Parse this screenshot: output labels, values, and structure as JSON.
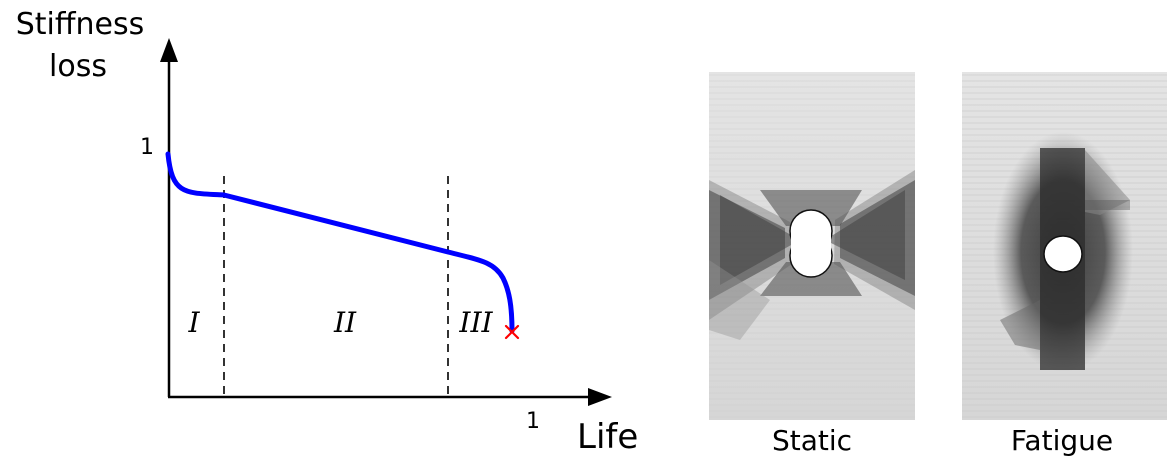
{
  "diagram": {
    "y_axis_label_line1": "Stiffness",
    "y_axis_label_line2": "loss",
    "x_axis_label": "Life",
    "y_tick_label": "1",
    "x_tick_label": "1",
    "regions": [
      "I",
      "II",
      "III"
    ],
    "curve_color": "#0000ff",
    "failure_marker_color": "#ff0000"
  },
  "specimens": [
    {
      "caption": "Static"
    },
    {
      "caption": "Fatigue"
    }
  ]
}
